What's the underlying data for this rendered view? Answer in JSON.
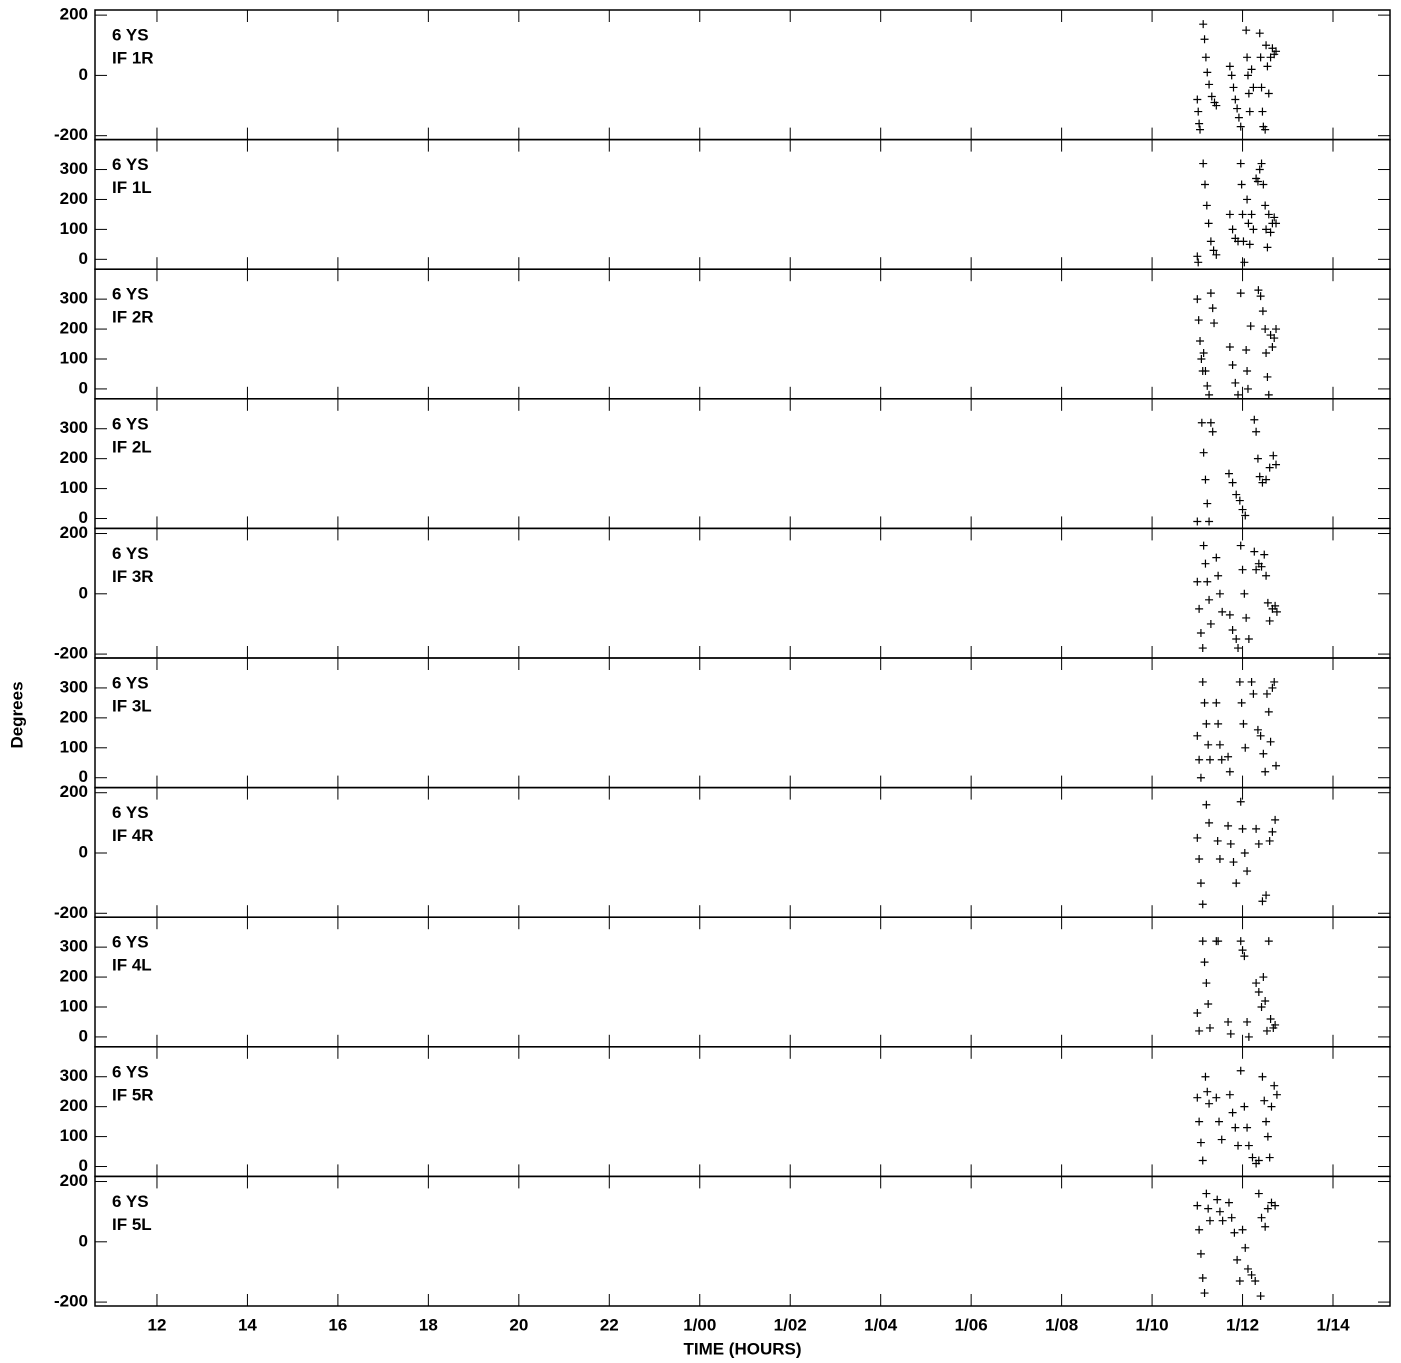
{
  "chart_data": [
    {
      "type": "scatter",
      "annotations": [
        "6 YS",
        "IF 1R"
      ],
      "color": "#000000",
      "xlim": [
        10.63,
        39.26
      ],
      "ylim": [
        -213,
        217
      ],
      "yticks": [
        -200,
        0,
        200
      ],
      "x": [
        35.0,
        35.02,
        35.04,
        35.06,
        35.13,
        35.16,
        35.19,
        35.22,
        35.26,
        35.32,
        35.38,
        35.42,
        35.72,
        35.76,
        35.8,
        35.84,
        35.88,
        35.92,
        35.96,
        36.08,
        36.1,
        36.12,
        36.14,
        36.16,
        36.2,
        36.24,
        36.38,
        36.4,
        36.42,
        36.44,
        36.46,
        36.5,
        36.52,
        36.55,
        36.58,
        36.62,
        36.66,
        36.7,
        36.74
      ],
      "values": [
        -80,
        -120,
        -160,
        -180,
        170,
        120,
        60,
        10,
        -30,
        -70,
        -90,
        -100,
        30,
        0,
        -40,
        -80,
        -110,
        -140,
        -170,
        150,
        60,
        0,
        -60,
        -120,
        20,
        -40,
        140,
        60,
        -40,
        -120,
        -170,
        -180,
        100,
        30,
        -60,
        60,
        90,
        70,
        80
      ]
    },
    {
      "type": "scatter",
      "annotations": [
        "6 YS",
        "IF 1L"
      ],
      "color": "#000000",
      "xlim": [
        10.63,
        39.26
      ],
      "ylim": [
        -33,
        400
      ],
      "yticks": [
        0,
        100,
        200,
        300
      ],
      "x": [
        35.0,
        35.02,
        35.13,
        35.17,
        35.21,
        35.25,
        35.3,
        35.36,
        35.42,
        35.72,
        35.78,
        35.84,
        35.9,
        35.96,
        35.98,
        36.0,
        36.02,
        36.04,
        36.1,
        36.13,
        36.16,
        36.2,
        36.24,
        36.3,
        36.34,
        36.38,
        36.42,
        36.46,
        36.5,
        36.52,
        36.55,
        36.58,
        36.62,
        36.66,
        36.7,
        36.74
      ],
      "values": [
        10,
        -10,
        320,
        250,
        180,
        120,
        60,
        30,
        15,
        150,
        100,
        70,
        60,
        320,
        250,
        150,
        60,
        -10,
        200,
        120,
        50,
        150,
        100,
        270,
        260,
        300,
        320,
        250,
        180,
        100,
        40,
        150,
        90,
        120,
        140,
        120
      ]
    },
    {
      "type": "scatter",
      "annotations": [
        "6 YS",
        "IF 2R"
      ],
      "color": "#000000",
      "xlim": [
        10.63,
        39.26
      ],
      "ylim": [
        -33,
        400
      ],
      "yticks": [
        0,
        100,
        200,
        300
      ],
      "x": [
        35.0,
        35.03,
        35.06,
        35.09,
        35.12,
        35.14,
        35.18,
        35.22,
        35.26,
        35.3,
        35.34,
        35.37,
        35.72,
        35.78,
        35.84,
        35.9,
        35.96,
        36.08,
        36.1,
        36.12,
        36.18,
        36.35,
        36.4,
        36.45,
        36.5,
        36.52,
        36.55,
        36.58,
        36.62,
        36.66,
        36.7,
        36.74
      ],
      "values": [
        300,
        230,
        160,
        100,
        60,
        120,
        60,
        10,
        -20,
        320,
        270,
        220,
        140,
        80,
        20,
        -20,
        320,
        130,
        60,
        0,
        210,
        330,
        310,
        260,
        200,
        120,
        40,
        -20,
        180,
        140,
        170,
        200
      ]
    },
    {
      "type": "scatter",
      "annotations": [
        "6 YS",
        "IF 2L"
      ],
      "color": "#000000",
      "xlim": [
        10.63,
        39.26
      ],
      "ylim": [
        -33,
        400
      ],
      "yticks": [
        0,
        100,
        200,
        300
      ],
      "x": [
        35.0,
        35.1,
        35.14,
        35.18,
        35.22,
        35.26,
        35.3,
        35.34,
        35.7,
        35.78,
        35.86,
        35.94,
        36.0,
        36.06,
        36.26,
        36.3,
        36.34,
        36.38,
        36.44,
        36.52,
        36.6,
        36.68,
        36.74
      ],
      "values": [
        -10,
        320,
        220,
        130,
        50,
        -10,
        320,
        290,
        150,
        120,
        80,
        60,
        30,
        10,
        330,
        290,
        200,
        140,
        120,
        130,
        170,
        210,
        180
      ]
    },
    {
      "type": "scatter",
      "annotations": [
        "6 YS",
        "IF 3R"
      ],
      "color": "#000000",
      "xlim": [
        10.63,
        39.26
      ],
      "ylim": [
        -213,
        217
      ],
      "yticks": [
        -200,
        0,
        200
      ],
      "x": [
        35.0,
        35.04,
        35.08,
        35.12,
        35.14,
        35.18,
        35.22,
        35.26,
        35.3,
        35.42,
        35.46,
        35.5,
        35.55,
        35.72,
        35.78,
        35.86,
        35.9,
        35.96,
        36.0,
        36.04,
        36.08,
        36.14,
        36.26,
        36.3,
        36.36,
        36.42,
        36.48,
        36.52,
        36.56,
        36.6,
        36.66,
        36.72,
        36.76
      ],
      "values": [
        40,
        -50,
        -130,
        -180,
        160,
        100,
        40,
        -20,
        -100,
        120,
        60,
        0,
        -60,
        -70,
        -120,
        -150,
        -180,
        160,
        80,
        0,
        -80,
        -150,
        140,
        80,
        100,
        90,
        130,
        60,
        -30,
        -90,
        -50,
        -40,
        -60
      ]
    },
    {
      "type": "scatter",
      "annotations": [
        "6 YS",
        "IF 3L"
      ],
      "ylabel": "Degrees",
      "color": "#000000",
      "xlim": [
        10.63,
        39.26
      ],
      "ylim": [
        -33,
        400
      ],
      "yticks": [
        0,
        100,
        200,
        300
      ],
      "x": [
        35.0,
        35.04,
        35.08,
        35.12,
        35.16,
        35.2,
        35.24,
        35.28,
        35.42,
        35.46,
        35.5,
        35.54,
        35.68,
        35.72,
        35.94,
        35.98,
        36.02,
        36.06,
        36.2,
        36.24,
        36.34,
        36.4,
        36.46,
        36.5,
        36.54,
        36.58,
        36.62,
        36.66,
        36.7,
        36.74
      ],
      "values": [
        140,
        60,
        0,
        320,
        250,
        180,
        110,
        60,
        250,
        180,
        110,
        60,
        70,
        20,
        320,
        250,
        180,
        100,
        320,
        280,
        160,
        140,
        80,
        20,
        280,
        220,
        120,
        300,
        320,
        40
      ]
    },
    {
      "type": "scatter",
      "annotations": [
        "6 YS",
        "IF 4R"
      ],
      "color": "#000000",
      "xlim": [
        10.63,
        39.26
      ],
      "ylim": [
        -213,
        217
      ],
      "yticks": [
        -200,
        0,
        200
      ],
      "x": [
        35.0,
        35.04,
        35.08,
        35.12,
        35.2,
        35.26,
        35.45,
        35.5,
        35.68,
        35.74,
        35.8,
        35.86,
        35.96,
        36.0,
        36.05,
        36.1,
        36.3,
        36.36,
        36.44,
        36.52,
        36.6,
        36.66,
        36.72
      ],
      "values": [
        50,
        -20,
        -100,
        -170,
        160,
        100,
        40,
        -20,
        90,
        30,
        -30,
        -100,
        170,
        80,
        0,
        -60,
        80,
        30,
        -160,
        -140,
        40,
        70,
        110
      ]
    },
    {
      "type": "scatter",
      "annotations": [
        "6 YS",
        "IF 4L"
      ],
      "color": "#000000",
      "xlim": [
        10.63,
        39.26
      ],
      "ylim": [
        -33,
        400
      ],
      "yticks": [
        0,
        100,
        200,
        300
      ],
      "x": [
        35.0,
        35.04,
        35.12,
        35.16,
        35.2,
        35.24,
        35.28,
        35.42,
        35.46,
        35.68,
        35.74,
        35.96,
        36.0,
        36.04,
        36.1,
        36.14,
        36.3,
        36.36,
        36.42,
        36.46,
        36.5,
        36.54,
        36.58,
        36.62,
        36.68,
        36.72
      ],
      "values": [
        80,
        20,
        320,
        250,
        180,
        110,
        30,
        320,
        320,
        50,
        10,
        320,
        290,
        270,
        50,
        0,
        180,
        150,
        100,
        200,
        120,
        20,
        320,
        60,
        30,
        40
      ]
    },
    {
      "type": "scatter",
      "annotations": [
        "6 YS",
        "IF 5R"
      ],
      "color": "#000000",
      "xlim": [
        10.63,
        39.26
      ],
      "ylim": [
        -33,
        400
      ],
      "yticks": [
        0,
        100,
        200,
        300
      ],
      "x": [
        35.0,
        35.04,
        35.08,
        35.12,
        35.18,
        35.22,
        35.26,
        35.42,
        35.48,
        35.54,
        35.72,
        35.78,
        35.84,
        35.9,
        35.96,
        36.04,
        36.1,
        36.14,
        36.22,
        36.3,
        36.36,
        36.44,
        36.48,
        36.52,
        36.56,
        36.6,
        36.64,
        36.7,
        36.76
      ],
      "values": [
        230,
        150,
        80,
        20,
        300,
        250,
        210,
        230,
        150,
        90,
        240,
        180,
        130,
        70,
        320,
        200,
        130,
        70,
        30,
        10,
        20,
        300,
        220,
        150,
        100,
        30,
        200,
        270,
        240
      ]
    },
    {
      "type": "scatter",
      "annotations": [
        "6 YS",
        "IF 5L"
      ],
      "xlabel": "TIME (HOURS)",
      "color": "#000000",
      "xlim": [
        10.63,
        39.26
      ],
      "ylim": [
        -213,
        217
      ],
      "yticks": [
        -200,
        0,
        200
      ],
      "xticks": [
        12,
        14,
        16,
        18,
        20,
        22,
        {
          "value": 24,
          "label": "1/00"
        },
        {
          "value": 26,
          "label": "1/02"
        },
        {
          "value": 28,
          "label": "1/04"
        },
        {
          "value": 30,
          "label": "1/06"
        },
        {
          "value": 32,
          "label": "1/08"
        },
        {
          "value": 34,
          "label": "1/10"
        },
        {
          "value": 36,
          "label": "1/12"
        },
        {
          "value": 38,
          "label": "1/14"
        }
      ],
      "x": [
        35.0,
        35.04,
        35.08,
        35.12,
        35.16,
        35.2,
        35.24,
        35.28,
        35.44,
        35.5,
        35.56,
        35.7,
        35.76,
        35.82,
        35.88,
        35.94,
        36.0,
        36.06,
        36.12,
        36.2,
        36.28,
        36.36,
        36.42,
        36.5,
        36.56,
        36.64,
        36.72,
        36.4
      ],
      "values": [
        120,
        40,
        -40,
        -120,
        -170,
        160,
        110,
        70,
        140,
        100,
        70,
        130,
        80,
        30,
        -60,
        -130,
        40,
        -20,
        -90,
        -110,
        -130,
        160,
        80,
        50,
        110,
        130,
        120,
        -180
      ]
    }
  ]
}
